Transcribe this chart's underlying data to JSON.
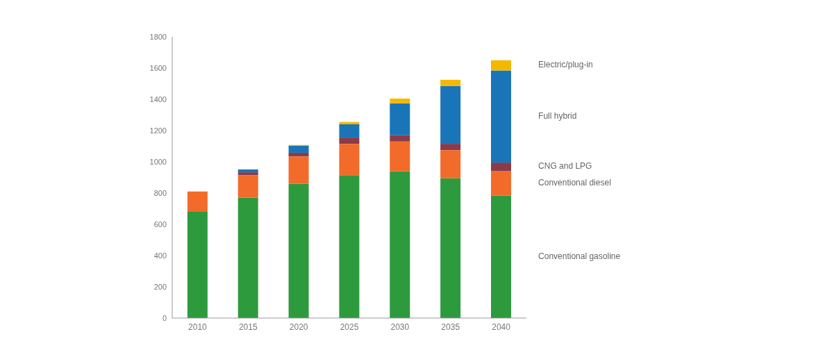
{
  "chart_data": {
    "type": "bar",
    "stacked": true,
    "categories": [
      "2010",
      "2015",
      "2020",
      "2025",
      "2030",
      "2035",
      "2040"
    ],
    "series": [
      {
        "name": "Conventional gasoline",
        "color": "#2e9a3e",
        "values": [
          680,
          770,
          860,
          915,
          940,
          895,
          785
        ]
      },
      {
        "name": "Conventional diesel",
        "color": "#f26b2a",
        "values": [
          130,
          145,
          175,
          200,
          190,
          180,
          155
        ]
      },
      {
        "name": "CNG and LPG",
        "color": "#8b3a48",
        "values": [
          0,
          18,
          23,
          40,
          40,
          40,
          55
        ]
      },
      {
        "name": "Full hybrid",
        "color": "#1a75b8",
        "values": [
          0,
          18,
          45,
          85,
          205,
          370,
          590
        ]
      },
      {
        "name": "Electric/plug-in",
        "color": "#f5b800",
        "values": [
          0,
          0,
          5,
          15,
          30,
          40,
          65
        ]
      }
    ],
    "ylim": [
      0,
      1800
    ],
    "yticks": [
      0,
      200,
      400,
      600,
      800,
      1000,
      1200,
      1400,
      1600,
      1800
    ],
    "grid": false,
    "legend": "right"
  }
}
